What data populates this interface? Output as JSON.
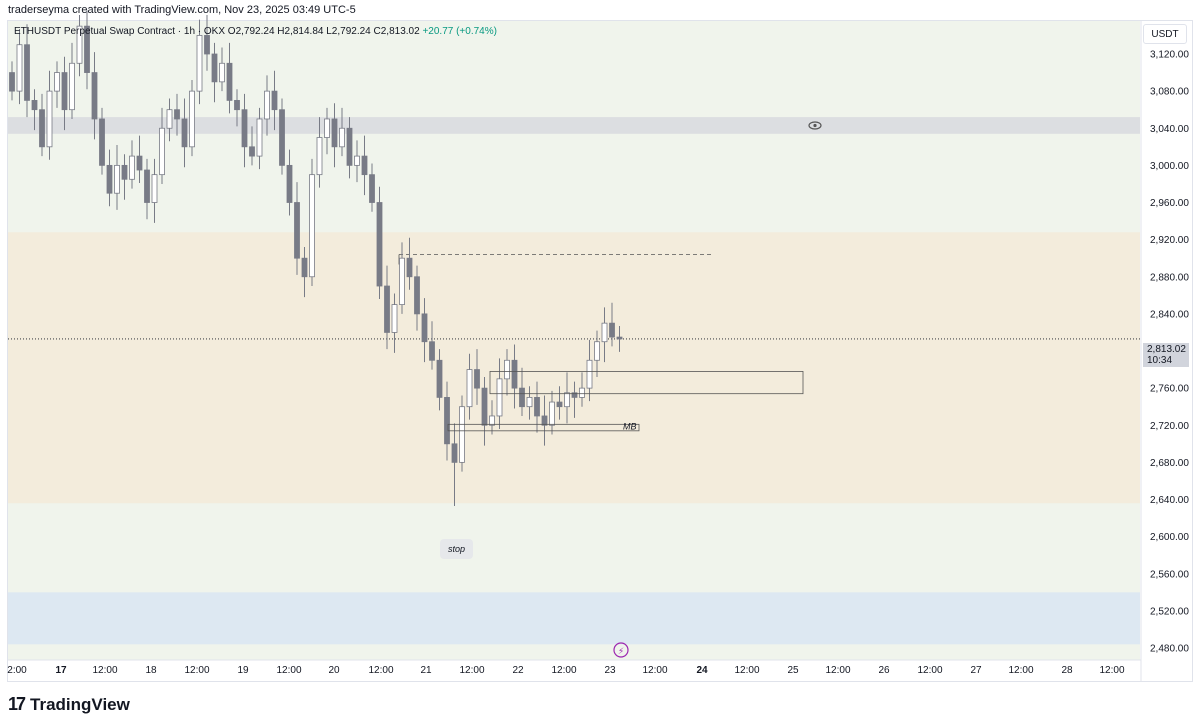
{
  "header": {
    "created_text": "traderseyma created with TradingView.com, Nov 23, 2025 03:49 UTC-5"
  },
  "legend": {
    "symbol": "ETHUSDT Perpetual Swap Contract · 1h · OKX",
    "open": "O2,792.24",
    "high": "H2,814.84",
    "low": "L2,792.24",
    "close": "C2,813.02",
    "change": "+20.77 (+0.74%)"
  },
  "axis": {
    "currency": "USDT",
    "current_price": "2,813.02",
    "countdown": "10:34"
  },
  "footer": {
    "brand": "TradingView"
  },
  "colors": {
    "candle": "#787b86",
    "supply_zone": "#dcdee1",
    "orange_zone": "#f3ecdc",
    "blue_zone": "#dde8f2",
    "green_bg": "#f0f4ec"
  },
  "chart_data": {
    "type": "candlestick",
    "ylim": [
      2460,
      3160
    ],
    "y_ticks": [
      2480,
      2520,
      2560,
      2600,
      2640,
      2680,
      2720,
      2760,
      2800,
      2840,
      2880,
      2920,
      2960,
      3000,
      3040,
      3080,
      3120
    ],
    "y_tick_labels": [
      "2,480.00",
      "2,520.00",
      "2,560.00",
      "2,600.00",
      "2,640.00",
      "2,680.00",
      "2,720.00",
      "2,760.00",
      "2,800.00",
      "2,840.00",
      "2,880.00",
      "2,920.00",
      "2,960.00",
      "3,000.00",
      "3,040.00",
      "3,080.00",
      "3,120.00"
    ],
    "x_tick_labels": [
      "2:00",
      "17",
      "12:00",
      "18",
      "12:00",
      "19",
      "12:00",
      "20",
      "12:00",
      "21",
      "12:00",
      "22",
      "12:00",
      "23",
      "12:00",
      "24",
      "12:00",
      "25",
      "12:00",
      "26",
      "12:00",
      "27",
      "12:00",
      "28",
      "12:00"
    ],
    "bold_x_ticks": [
      "17",
      "24"
    ],
    "zones": [
      {
        "name": "supply",
        "from": 3034,
        "to": 3052,
        "color": "#dcdee1"
      },
      {
        "name": "orange",
        "from": 2636,
        "to": 2928,
        "color": "#f3ecdc"
      },
      {
        "name": "blue",
        "from": 2484,
        "to": 2540,
        "color": "#dde8f2"
      }
    ],
    "dashed_level": 2904,
    "current_price": 2813.02,
    "boxes": [
      {
        "label": "",
        "top": 2778,
        "bottom": 2754
      },
      {
        "label": "MB",
        "top": 2721,
        "bottom": 2714
      }
    ],
    "annotations": [
      {
        "label": "stop",
        "price": 2618
      }
    ],
    "closes": [
      3080,
      3130,
      3070,
      3060,
      3020,
      3080,
      3100,
      3060,
      3110,
      3150,
      3100,
      3050,
      3000,
      2970,
      3000,
      2985,
      3010,
      2995,
      2960,
      2990,
      3040,
      3060,
      3050,
      3020,
      3080,
      3140,
      3120,
      3090,
      3110,
      3070,
      3060,
      3020,
      3010,
      3050,
      3080,
      3060,
      3000,
      2960,
      2900,
      2880,
      2990,
      3030,
      3050,
      3020,
      3040,
      3000,
      3010,
      2990,
      2960,
      2870,
      2820,
      2850,
      2900,
      2880,
      2840,
      2810,
      2790,
      2750,
      2700,
      2680,
      2740,
      2780,
      2760,
      2720,
      2730,
      2770,
      2790,
      2760,
      2740,
      2750,
      2730,
      2720,
      2745,
      2740,
      2755,
      2750,
      2760,
      2790,
      2810,
      2830,
      2815,
      2813
    ]
  }
}
